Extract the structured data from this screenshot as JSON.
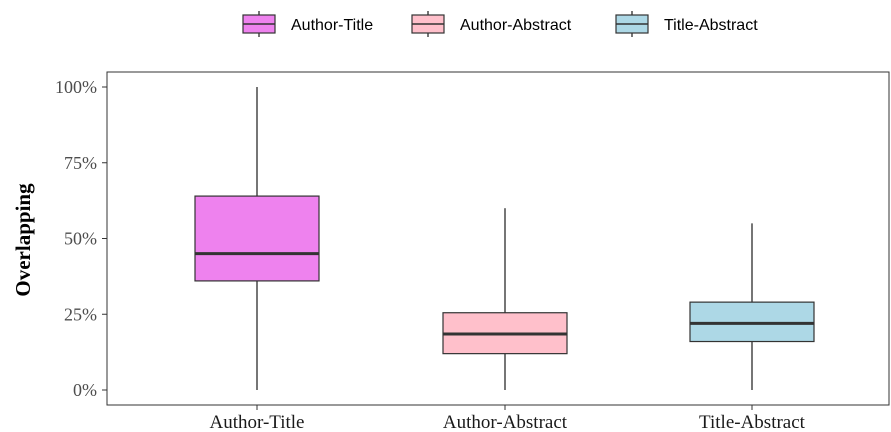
{
  "chart_data": {
    "type": "boxplot",
    "title": "",
    "xlabel": "",
    "ylabel": "Overlapping",
    "ylim": [
      0,
      100
    ],
    "yticks": [
      {
        "value": 0,
        "label": "0%"
      },
      {
        "value": 25,
        "label": "25%"
      },
      {
        "value": 50,
        "label": "50%"
      },
      {
        "value": 75,
        "label": "75%"
      },
      {
        "value": 100,
        "label": "100%"
      }
    ],
    "legend_position": "top",
    "grid": false,
    "categories": [
      "Author-Title",
      "Author-Abstract",
      "Title-Abstract"
    ],
    "series": [
      {
        "name": "Author-Title",
        "color": "#ee82ee",
        "min": 0,
        "q1": 36,
        "median": 45,
        "q3": 64,
        "max": 100
      },
      {
        "name": "Author-Abstract",
        "color": "#ffc0cb",
        "min": 0,
        "q1": 12,
        "median": 18.5,
        "q3": 25.5,
        "max": 60
      },
      {
        "name": "Title-Abstract",
        "color": "#add8e6",
        "min": 0,
        "q1": 16,
        "median": 22,
        "q3": 29,
        "max": 55
      }
    ]
  }
}
